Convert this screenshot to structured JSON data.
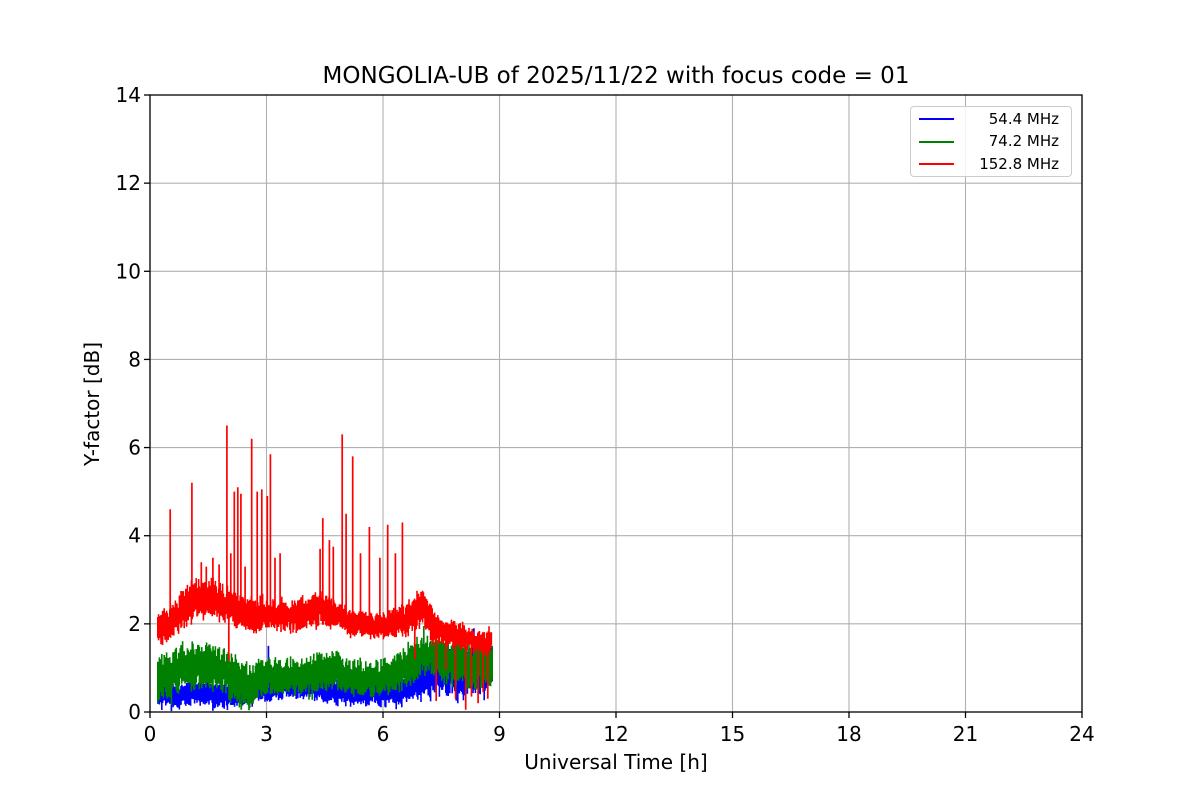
{
  "chart_data": {
    "type": "line",
    "title": "MONGOLIA-UB of 2025/11/22 with focus code = 01",
    "xlabel": "Universal Time [h]",
    "ylabel": "Y-factor [dB]",
    "xlim": [
      0,
      24
    ],
    "ylim": [
      0,
      14
    ],
    "xticks": [
      0,
      3,
      6,
      9,
      12,
      15,
      18,
      21,
      24
    ],
    "yticks": [
      0,
      2,
      4,
      6,
      8,
      10,
      12,
      14
    ],
    "grid": true,
    "grid_color": "#b0b0b0",
    "axis_color": "#000000",
    "legend": {
      "position": "upper right",
      "entries": [
        {
          "label": "54.4 MHz",
          "color": "#0000ff"
        },
        {
          "label": "74.2 MHz",
          "color": "#008000"
        },
        {
          "label": "152.8 MHz",
          "color": "#ff0000"
        }
      ]
    },
    "series": [
      {
        "name": "54.4 MHz",
        "color": "#0000ff",
        "t_start": 0.2,
        "t_end": 8.82,
        "band": [
          [
            0.2,
            0.45,
            0.3
          ],
          [
            0.7,
            0.4,
            0.3
          ],
          [
            1.2,
            0.45,
            0.3
          ],
          [
            1.7,
            0.35,
            0.28
          ],
          [
            2.2,
            0.4,
            0.3
          ],
          [
            2.8,
            0.5,
            0.3
          ],
          [
            3.5,
            0.55,
            0.25
          ],
          [
            4.2,
            0.6,
            0.3
          ],
          [
            4.8,
            0.45,
            0.3
          ],
          [
            5.5,
            0.4,
            0.28
          ],
          [
            6.2,
            0.45,
            0.3
          ],
          [
            6.8,
            0.6,
            0.35
          ],
          [
            7.1,
            0.8,
            0.45
          ],
          [
            7.5,
            0.9,
            0.5
          ],
          [
            8.0,
            0.85,
            0.55
          ],
          [
            8.5,
            1.0,
            0.6
          ],
          [
            8.82,
            1.1,
            0.5
          ]
        ],
        "spikes_up": [
          [
            3.05,
            1.5
          ],
          [
            8.34,
            1.9
          ],
          [
            8.52,
            1.75
          ],
          [
            8.72,
            1.65
          ]
        ],
        "spikes_down": [
          [
            0.55,
            0.02
          ],
          [
            1.62,
            0.03
          ]
        ]
      },
      {
        "name": "74.2 MHz",
        "color": "#008000",
        "t_start": 0.2,
        "t_end": 8.82,
        "band": [
          [
            0.2,
            0.75,
            0.5
          ],
          [
            0.6,
            0.9,
            0.55
          ],
          [
            1.0,
            1.05,
            0.55
          ],
          [
            1.4,
            1.05,
            0.55
          ],
          [
            1.8,
            0.95,
            0.5
          ],
          [
            2.2,
            0.75,
            0.55
          ],
          [
            2.5,
            0.6,
            0.5
          ],
          [
            2.9,
            0.75,
            0.45
          ],
          [
            3.3,
            0.8,
            0.4
          ],
          [
            3.8,
            0.8,
            0.4
          ],
          [
            4.3,
            0.9,
            0.45
          ],
          [
            4.7,
            0.95,
            0.45
          ],
          [
            5.1,
            0.8,
            0.4
          ],
          [
            5.6,
            0.75,
            0.4
          ],
          [
            6.1,
            0.8,
            0.4
          ],
          [
            6.5,
            0.95,
            0.45
          ],
          [
            6.9,
            1.2,
            0.5
          ],
          [
            7.2,
            1.35,
            0.5
          ],
          [
            7.6,
            1.2,
            0.55
          ],
          [
            8.0,
            1.05,
            0.6
          ],
          [
            8.4,
            1.05,
            0.6
          ],
          [
            8.82,
            1.1,
            0.55
          ]
        ],
        "spikes_up": [
          [
            7.05,
            1.95
          ]
        ],
        "spikes_down": [
          [
            2.35,
            0.05
          ],
          [
            2.55,
            0.04
          ]
        ]
      },
      {
        "name": "152.8 MHz",
        "color": "#ff0000",
        "t_start": 0.2,
        "t_end": 8.8,
        "band": [
          [
            0.2,
            1.85,
            0.35
          ],
          [
            0.5,
            2.0,
            0.4
          ],
          [
            0.8,
            2.3,
            0.45
          ],
          [
            1.1,
            2.5,
            0.45
          ],
          [
            1.5,
            2.6,
            0.45
          ],
          [
            1.9,
            2.5,
            0.45
          ],
          [
            2.3,
            2.3,
            0.4
          ],
          [
            2.7,
            2.15,
            0.35
          ],
          [
            3.1,
            2.2,
            0.35
          ],
          [
            3.6,
            2.15,
            0.35
          ],
          [
            4.0,
            2.25,
            0.4
          ],
          [
            4.4,
            2.35,
            0.4
          ],
          [
            4.8,
            2.2,
            0.35
          ],
          [
            5.2,
            2.0,
            0.3
          ],
          [
            5.7,
            1.95,
            0.3
          ],
          [
            6.2,
            2.0,
            0.35
          ],
          [
            6.6,
            2.1,
            0.35
          ],
          [
            7.0,
            2.4,
            0.45
          ],
          [
            7.3,
            1.95,
            0.4
          ],
          [
            7.6,
            1.8,
            0.3
          ],
          [
            8.0,
            1.75,
            0.3
          ],
          [
            8.4,
            1.6,
            0.25
          ],
          [
            8.65,
            1.55,
            0.3
          ],
          [
            8.8,
            1.65,
            0.3
          ]
        ],
        "spikes_up": [
          [
            0.52,
            4.6
          ],
          [
            1.08,
            5.2
          ],
          [
            1.32,
            3.4
          ],
          [
            1.45,
            3.3
          ],
          [
            1.62,
            3.5
          ],
          [
            1.78,
            3.35
          ],
          [
            1.98,
            6.5
          ],
          [
            2.08,
            3.6
          ],
          [
            2.17,
            5.0
          ],
          [
            2.26,
            5.1
          ],
          [
            2.34,
            4.95
          ],
          [
            2.45,
            3.3
          ],
          [
            2.62,
            6.2
          ],
          [
            2.76,
            5.0
          ],
          [
            2.88,
            5.05
          ],
          [
            3.02,
            4.9
          ],
          [
            3.1,
            5.85
          ],
          [
            3.22,
            3.5
          ],
          [
            3.35,
            3.6
          ],
          [
            4.38,
            3.7
          ],
          [
            4.45,
            4.4
          ],
          [
            4.62,
            3.9
          ],
          [
            4.72,
            3.75
          ],
          [
            4.95,
            6.3
          ],
          [
            5.05,
            4.5
          ],
          [
            5.22,
            5.8
          ],
          [
            5.42,
            3.6
          ],
          [
            5.65,
            4.2
          ],
          [
            5.92,
            3.5
          ],
          [
            6.12,
            4.25
          ],
          [
            6.32,
            3.6
          ],
          [
            6.5,
            4.3
          ]
        ],
        "spikes_down": [
          [
            2.03,
            1.15
          ],
          [
            6.82,
            1.2
          ],
          [
            7.37,
            0.25
          ],
          [
            7.62,
            0.95
          ],
          [
            7.87,
            0.3
          ],
          [
            8.13,
            0.05
          ],
          [
            8.28,
            0.35
          ],
          [
            8.45,
            0.2
          ],
          [
            8.58,
            0.45
          ],
          [
            8.7,
            0.3
          ]
        ]
      }
    ]
  }
}
